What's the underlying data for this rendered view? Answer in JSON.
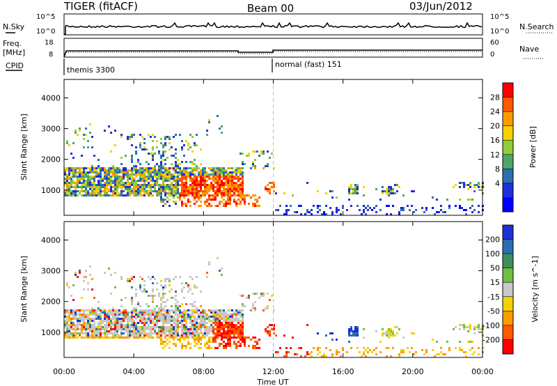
{
  "header": {
    "radar": "TIGER (fitACF)",
    "beam": "Beam 00",
    "date": "03/Jun/2012"
  },
  "strip_labels": {
    "nsky": "N.Sky",
    "nsearch": "N.Search",
    "freq_top": "Freq.",
    "freq_unit": "[MHz]",
    "nave": "Nave",
    "cpid": "CPID"
  },
  "strip_ticks": {
    "nsky_left": [
      "10^5",
      "10^0"
    ],
    "nsky_right": [
      "10^5",
      "10^0"
    ],
    "freq_left": [
      "18",
      "8"
    ],
    "nave_right": [
      "60",
      "0"
    ]
  },
  "cpid_segments": [
    {
      "label": "themis 3300",
      "start_hour": 0,
      "end_hour": 12
    },
    {
      "label": "normal (fast) 151",
      "start_hour": 12,
      "end_hour": 24
    }
  ],
  "chart_data": {
    "type": "heatmap",
    "xlabel": "Time UT",
    "x_ticks": [
      "00:00",
      "04:00",
      "08:00",
      "12:00",
      "16:00",
      "20:00",
      "00:00"
    ],
    "x_range_hours": [
      0,
      24
    ],
    "ylabel": "Slant Range [km]",
    "y_ticks": [
      "1000",
      "2000",
      "3000",
      "4000"
    ],
    "y_range_km": [
      180,
      4600
    ],
    "marker_hour": 12,
    "panels": [
      {
        "name": "power",
        "colorbar_label": "Power [dB]",
        "colorbar_ticks": [
          "28",
          "24",
          "20",
          "16",
          "12",
          "8",
          "4"
        ],
        "colorbar_colors": [
          "#ff0000",
          "#ff5a00",
          "#ff9a00",
          "#f2d200",
          "#8fce3a",
          "#4ea56a",
          "#2a6fb0",
          "#1f2fd6",
          "#0000ff"
        ]
      },
      {
        "name": "velocity",
        "colorbar_label": "Velocity [m s^-1]",
        "colorbar_ticks": [
          "200",
          "100",
          "50",
          "15",
          "-15",
          "-50",
          "-100",
          "-200"
        ],
        "colorbar_colors": [
          "#1f2fd6",
          "#2a6fb0",
          "#3f8f5a",
          "#6fbf40",
          "#c8c8c8",
          "#f2d200",
          "#ff9a00",
          "#ff5a00",
          "#ff0000"
        ]
      }
    ]
  }
}
